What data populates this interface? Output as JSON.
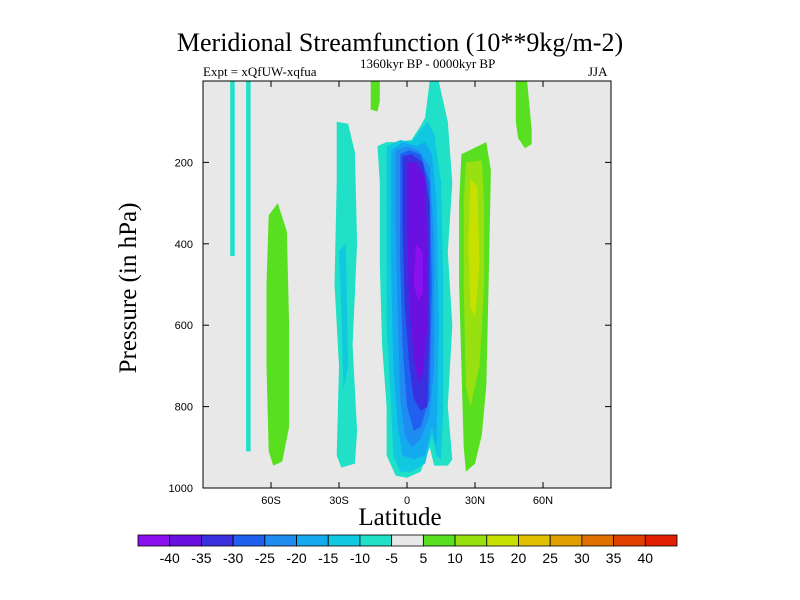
{
  "chart_data": {
    "type": "contour",
    "title": "Meridional Streamfunction (10**9kg/m-2)",
    "subtitle_left": "Expt = xQfUW-xqfua",
    "subtitle_center": "1360kyr BP - 0000kyr BP",
    "subtitle_right": "JJA",
    "xlabel": "Latitude",
    "ylabel": "Pressure (in hPa)",
    "xlim": [
      -90,
      90
    ],
    "ylim": [
      0,
      1000
    ],
    "x_ticks": [
      {
        "value": -60,
        "label": "60S"
      },
      {
        "value": -30,
        "label": "30S"
      },
      {
        "value": 0,
        "label": "0"
      },
      {
        "value": 30,
        "label": "30N"
      },
      {
        "value": 60,
        "label": "60N"
      }
    ],
    "y_ticks": [
      {
        "value": 200,
        "label": "200"
      },
      {
        "value": 400,
        "label": "400"
      },
      {
        "value": 600,
        "label": "600"
      },
      {
        "value": 800,
        "label": "800"
      },
      {
        "value": 1000,
        "label": "1000"
      }
    ],
    "colorbar": {
      "labels": [
        "-40",
        "-35",
        "-30",
        "-25",
        "-20",
        "-15",
        "-10",
        "-5",
        "5",
        "10",
        "15",
        "20",
        "25",
        "30",
        "35",
        "40"
      ],
      "colors": [
        "#8a10f0",
        "#6a10e0",
        "#3a30e0",
        "#2060f0",
        "#1e8cf0",
        "#14aaf0",
        "#10c8e0",
        "#20e0c8",
        "#e8e8e8",
        "#58e020",
        "#98e010",
        "#c8e000",
        "#e0c000",
        "#e0a000",
        "#e07000",
        "#e04000",
        "#e02000"
      ]
    },
    "regions": [
      {
        "level": "-5",
        "color": "#20e0c8",
        "points": [
          [
            -78,
            0
          ],
          [
            -76,
            0
          ],
          [
            -76,
            430
          ],
          [
            -78,
            430
          ]
        ]
      },
      {
        "level": "-5",
        "color": "#20e0c8",
        "points": [
          [
            -71,
            0
          ],
          [
            -69,
            0
          ],
          [
            -69,
            910
          ],
          [
            -71,
            910
          ]
        ]
      },
      {
        "level": "-5",
        "color": "#20e0c8",
        "points": [
          [
            -31,
            100
          ],
          [
            -26,
            105
          ],
          [
            -23,
            175
          ],
          [
            -22,
            400
          ],
          [
            -24,
            650
          ],
          [
            -22,
            860
          ],
          [
            -23,
            940
          ],
          [
            -29,
            950
          ],
          [
            -31,
            920
          ],
          [
            -30,
            700
          ],
          [
            -32,
            500
          ],
          [
            -31,
            250
          ]
        ]
      },
      {
        "level": "-5",
        "color": "#20e0c8",
        "points": [
          [
            -13,
            160
          ],
          [
            -9,
            150
          ],
          [
            -5,
            150
          ],
          [
            2,
            145
          ],
          [
            6,
            110
          ],
          [
            8,
            90
          ],
          [
            10,
            0
          ],
          [
            14,
            0
          ],
          [
            18,
            100
          ],
          [
            20,
            250
          ],
          [
            18,
            420
          ],
          [
            20,
            600
          ],
          [
            18,
            800
          ],
          [
            20,
            930
          ],
          [
            18,
            945
          ],
          [
            12,
            945
          ],
          [
            10,
            900
          ],
          [
            6,
            960
          ],
          [
            0,
            975
          ],
          [
            -5,
            970
          ],
          [
            -9,
            920
          ],
          [
            -9,
            800
          ],
          [
            -11,
            650
          ],
          [
            -12,
            450
          ],
          [
            -12,
            250
          ]
        ]
      },
      {
        "level": "-10",
        "color": "#10c8e0",
        "points": [
          [
            -30,
            420
          ],
          [
            -27,
            400
          ],
          [
            -26,
            700
          ],
          [
            -28,
            760
          ],
          [
            -29,
            560
          ]
        ]
      },
      {
        "level": "-10",
        "color": "#10c8e0",
        "points": [
          [
            -9,
            160
          ],
          [
            -3,
            145
          ],
          [
            2,
            150
          ],
          [
            6,
            120
          ],
          [
            9,
            100
          ],
          [
            12,
            130
          ],
          [
            15,
            250
          ],
          [
            16,
            500
          ],
          [
            16,
            800
          ],
          [
            15,
            930
          ],
          [
            13,
            920
          ],
          [
            11,
            870
          ],
          [
            8,
            940
          ],
          [
            2,
            960
          ],
          [
            -3,
            960
          ],
          [
            -6,
            920
          ],
          [
            -7,
            800
          ],
          [
            -9,
            600
          ],
          [
            -9,
            300
          ]
        ]
      },
      {
        "level": "-15",
        "color": "#14aaf0",
        "points": [
          [
            -7,
            170
          ],
          [
            -2,
            150
          ],
          [
            4,
            160
          ],
          [
            8,
            150
          ],
          [
            11,
            180
          ],
          [
            13,
            300
          ],
          [
            14,
            600
          ],
          [
            13,
            900
          ],
          [
            11,
            850
          ],
          [
            8,
            920
          ],
          [
            3,
            930
          ],
          [
            -2,
            920
          ],
          [
            -4,
            850
          ],
          [
            -6,
            700
          ],
          [
            -7,
            450
          ]
        ]
      },
      {
        "level": "-20",
        "color": "#1e8cf0",
        "points": [
          [
            -5,
            170
          ],
          [
            0,
            160
          ],
          [
            5,
            170
          ],
          [
            10,
            210
          ],
          [
            12,
            400
          ],
          [
            12,
            700
          ],
          [
            10,
            820
          ],
          [
            6,
            880
          ],
          [
            2,
            900
          ],
          [
            -1,
            870
          ],
          [
            -3,
            780
          ],
          [
            -4,
            600
          ],
          [
            -5,
            350
          ]
        ]
      },
      {
        "level": "-25",
        "color": "#2060f0",
        "points": [
          [
            -3,
            180
          ],
          [
            1,
            170
          ],
          [
            6,
            180
          ],
          [
            10,
            250
          ],
          [
            11,
            500
          ],
          [
            10,
            780
          ],
          [
            6,
            850
          ],
          [
            3,
            860
          ],
          [
            0,
            800
          ],
          [
            -2,
            650
          ],
          [
            -3,
            450
          ]
        ]
      },
      {
        "level": "-30",
        "color": "#3a30e0",
        "points": [
          [
            -2,
            185
          ],
          [
            2,
            180
          ],
          [
            7,
            200
          ],
          [
            10,
            300
          ],
          [
            10,
            600
          ],
          [
            9,
            800
          ],
          [
            6,
            810
          ],
          [
            3,
            780
          ],
          [
            1,
            700
          ],
          [
            -1,
            550
          ],
          [
            -2,
            350
          ]
        ]
      },
      {
        "level": "-35",
        "color": "#6a10e0",
        "points": [
          [
            0,
            200
          ],
          [
            4,
            200
          ],
          [
            8,
            240
          ],
          [
            9,
            400
          ],
          [
            9,
            600
          ],
          [
            7,
            720
          ],
          [
            5,
            740
          ],
          [
            3,
            680
          ],
          [
            1,
            550
          ],
          [
            0,
            350
          ]
        ]
      },
      {
        "level": "-40",
        "color": "#8a10f0",
        "points": [
          [
            4,
            400
          ],
          [
            7,
            420
          ],
          [
            7,
            520
          ],
          [
            5,
            540
          ],
          [
            3,
            500
          ]
        ]
      },
      {
        "level": "5",
        "color": "#58e020",
        "points": [
          [
            -61,
            330
          ],
          [
            -57,
            300
          ],
          [
            -53,
            370
          ],
          [
            -52,
            600
          ],
          [
            -52,
            850
          ],
          [
            -55,
            935
          ],
          [
            -59,
            945
          ],
          [
            -61,
            910
          ],
          [
            -62,
            700
          ],
          [
            -62,
            500
          ]
        ]
      },
      {
        "level": "5",
        "color": "#58e020",
        "points": [
          [
            -16,
            0
          ],
          [
            -12,
            0
          ],
          [
            -12,
            50
          ],
          [
            -13,
            75
          ],
          [
            -16,
            70
          ]
        ]
      },
      {
        "level": "5",
        "color": "#58e020",
        "points": [
          [
            48,
            0
          ],
          [
            53,
            0
          ],
          [
            55,
            120
          ],
          [
            55,
            155
          ],
          [
            52,
            165
          ],
          [
            49,
            140
          ],
          [
            48,
            100
          ]
        ]
      },
      {
        "level": "5",
        "color": "#58e020",
        "points": [
          [
            24,
            180
          ],
          [
            35,
            150
          ],
          [
            37,
            220
          ],
          [
            36,
            500
          ],
          [
            35,
            750
          ],
          [
            33,
            870
          ],
          [
            30,
            940
          ],
          [
            26,
            960
          ],
          [
            25,
            900
          ],
          [
            24,
            700
          ],
          [
            23,
            500
          ],
          [
            23,
            300
          ]
        ]
      },
      {
        "level": "10",
        "color": "#98e010",
        "points": [
          [
            26,
            200
          ],
          [
            33,
            195
          ],
          [
            34,
            300
          ],
          [
            34,
            500
          ],
          [
            32,
            700
          ],
          [
            28,
            800
          ],
          [
            26,
            750
          ],
          [
            25,
            500
          ],
          [
            25,
            300
          ]
        ]
      },
      {
        "level": "15",
        "color": "#c8e000",
        "points": [
          [
            28,
            240
          ],
          [
            31,
            260
          ],
          [
            32,
            450
          ],
          [
            30,
            580
          ],
          [
            28,
            560
          ],
          [
            27,
            400
          ]
        ]
      }
    ]
  }
}
